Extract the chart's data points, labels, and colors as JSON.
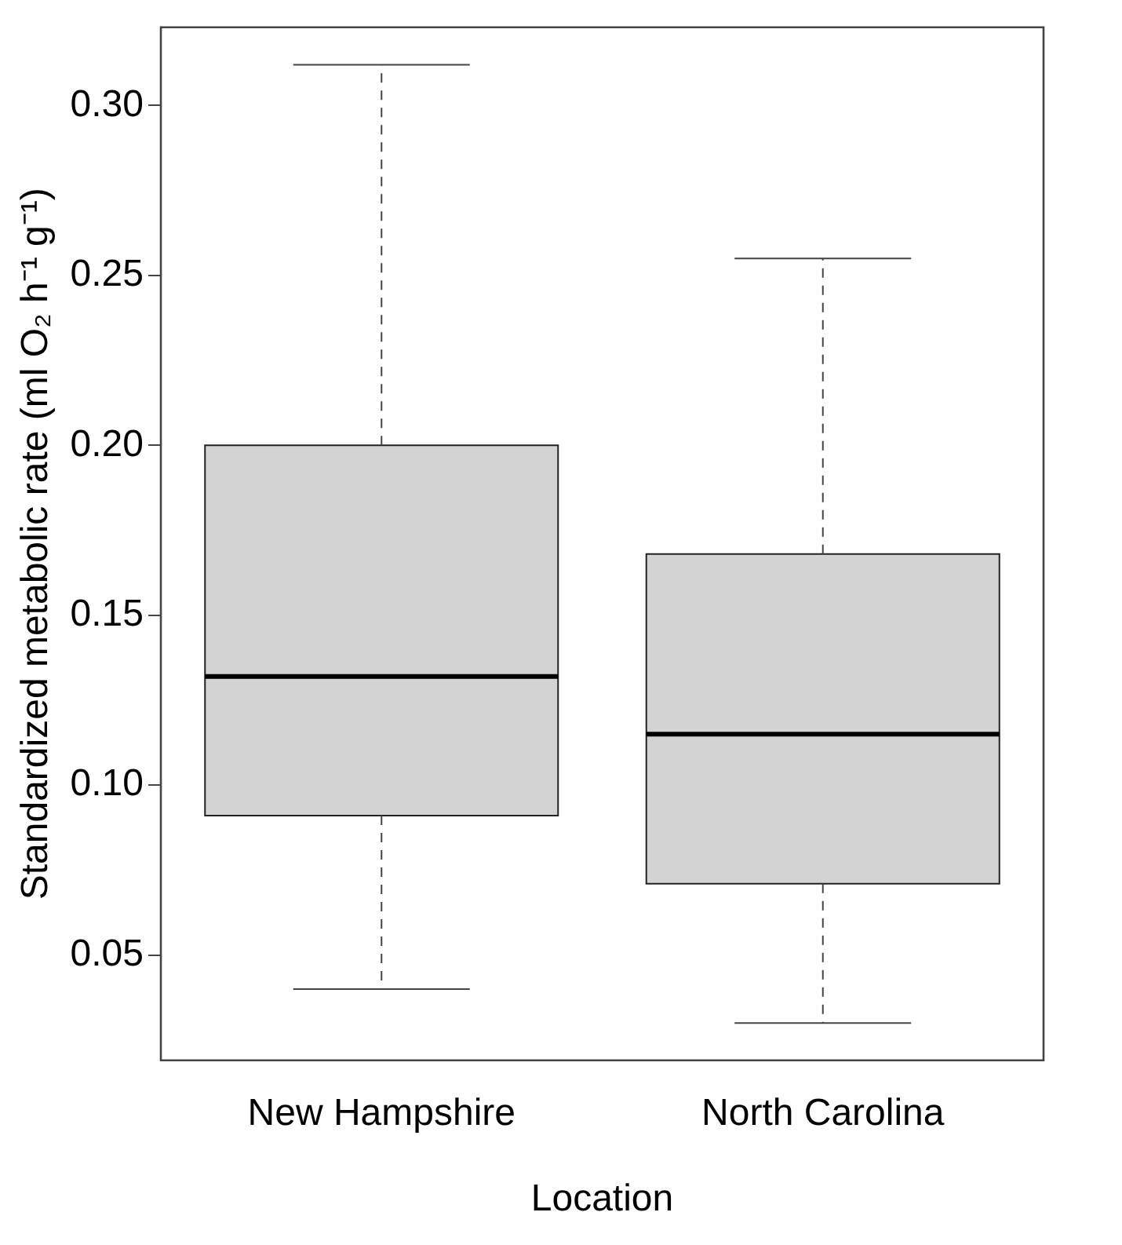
{
  "chart_data": {
    "type": "box",
    "xlabel": "Location",
    "ylabel": "Standardized metabolic rate (ml O₂ h⁻¹ g⁻¹)",
    "categories": [
      "New Hampshire",
      "North Carolina"
    ],
    "series": [
      {
        "color": "#d3d3d3",
        "boxes": [
          {
            "low": 0.04,
            "q1": 0.091,
            "median": 0.132,
            "q3": 0.2,
            "high": 0.312
          },
          {
            "low": 0.03,
            "q1": 0.071,
            "median": 0.115,
            "q3": 0.168,
            "high": 0.255
          }
        ]
      }
    ],
    "ylim": [
      0.019,
      0.323
    ],
    "yticks": [
      {
        "value": 0.05,
        "label": "0.05"
      },
      {
        "value": 0.1,
        "label": "0.10"
      },
      {
        "value": 0.15,
        "label": "0.15"
      },
      {
        "value": 0.2,
        "label": "0.20"
      },
      {
        "value": 0.25,
        "label": "0.25"
      },
      {
        "value": 0.3,
        "label": "0.30"
      }
    ],
    "grid": false
  }
}
